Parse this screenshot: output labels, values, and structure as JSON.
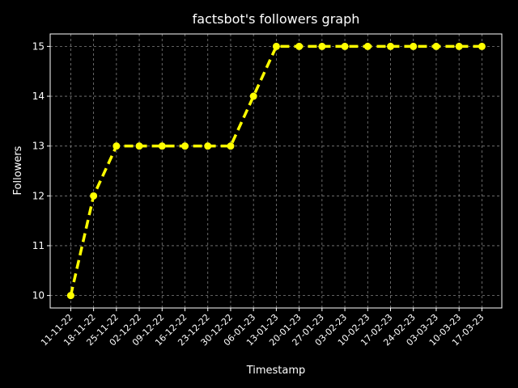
{
  "chart_data": {
    "type": "line",
    "title": "factsbot's followers graph",
    "xlabel": "Timestamp",
    "ylabel": "Followers",
    "x": [
      "11-11-22",
      "18-11-22",
      "25-11-22",
      "02-12-22",
      "09-12-22",
      "16-12-22",
      "23-12-22",
      "30-12-22",
      "06-01-23",
      "13-01-23",
      "20-01-23",
      "27-01-23",
      "03-02-23",
      "10-02-23",
      "17-02-23",
      "24-02-23",
      "03-03-23",
      "10-03-23",
      "17-03-23"
    ],
    "series": [
      {
        "values": [
          10,
          12,
          13,
          13,
          13,
          13,
          13,
          13,
          14,
          15,
          15,
          15,
          15,
          15,
          15,
          15,
          15,
          15,
          15
        ]
      }
    ],
    "ylim": [
      9.75,
      15.25
    ],
    "yticks": [
      10,
      11,
      12,
      13,
      14,
      15
    ],
    "grid": true,
    "line_style": "dashed",
    "marker": "circle",
    "colors": {
      "background": "#000000",
      "line": "#ffff00",
      "grid": "#808080",
      "text": "#ffffff"
    }
  }
}
